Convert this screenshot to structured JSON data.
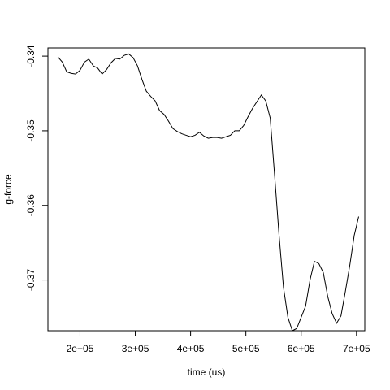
{
  "chart_data": {
    "type": "line",
    "title": "",
    "xlabel": "time (us)",
    "ylabel": "g-force",
    "xlim": [
      142000,
      715000
    ],
    "ylim": [
      -0.3768,
      -0.3389
    ],
    "x_ticks": [
      200000,
      300000,
      400000,
      500000,
      600000,
      700000
    ],
    "x_tick_labels": [
      "2e+05",
      "3e+05",
      "4e+05",
      "5e+05",
      "6e+05",
      "7e+05"
    ],
    "y_ticks": [
      -0.34,
      -0.35,
      -0.36,
      -0.37
    ],
    "y_tick_labels": [
      "-0.34",
      "-0.35",
      "-0.36",
      "-0.37"
    ],
    "grid": false,
    "legend": "none",
    "line_color": "#000000",
    "series": [
      {
        "x": [
          160000,
          168000,
          176000,
          184000,
          192000,
          200000,
          208000,
          216000,
          224000,
          232000,
          240000,
          248000,
          256000,
          264000,
          272000,
          280000,
          288000,
          296000,
          304000,
          312000,
          320000,
          328000,
          336000,
          344000,
          352000,
          360000,
          368000,
          376000,
          384000,
          392000,
          400000,
          408000,
          416000,
          424000,
          432000,
          440000,
          448000,
          456000,
          464000,
          472000,
          480000,
          488000,
          496000,
          504000,
          512000,
          520000,
          528000,
          536000,
          544000,
          552000,
          560000,
          568000,
          576000,
          584000,
          592000,
          600000,
          608000,
          616000,
          624000,
          632000,
          640000,
          648000,
          656000,
          664000,
          672000,
          680000,
          688000,
          696000,
          704000
        ],
        "y": [
          -0.3401,
          -0.3408,
          -0.3421,
          -0.3423,
          -0.3424,
          -0.3419,
          -0.3408,
          -0.3404,
          -0.3413,
          -0.3416,
          -0.3424,
          -0.3418,
          -0.3409,
          -0.3403,
          -0.3404,
          -0.3399,
          -0.3397,
          -0.3402,
          -0.3413,
          -0.3431,
          -0.3447,
          -0.3454,
          -0.346,
          -0.3473,
          -0.3478,
          -0.3487,
          -0.3497,
          -0.3501,
          -0.3504,
          -0.3506,
          -0.3508,
          -0.3506,
          -0.3502,
          -0.3507,
          -0.351,
          -0.3509,
          -0.3509,
          -0.351,
          -0.3508,
          -0.3506,
          -0.35,
          -0.35,
          -0.3493,
          -0.3481,
          -0.347,
          -0.3461,
          -0.3452,
          -0.346,
          -0.3483,
          -0.356,
          -0.364,
          -0.371,
          -0.375,
          -0.3768,
          -0.3765,
          -0.375,
          -0.3735,
          -0.37,
          -0.3675,
          -0.3678,
          -0.369,
          -0.3722,
          -0.3745,
          -0.3758,
          -0.3748,
          -0.3715,
          -0.368,
          -0.364,
          -0.3615
        ]
      }
    ]
  }
}
